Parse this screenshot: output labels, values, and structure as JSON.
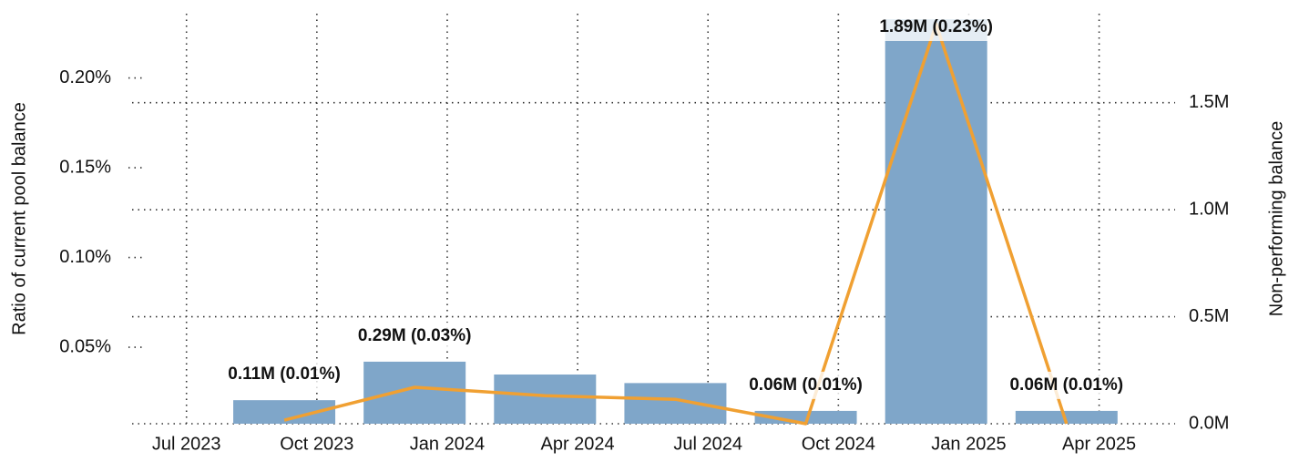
{
  "chart_data": {
    "type": "bar-line",
    "ylabel": "Ratio of current pool balance",
    "y2label": "Non-performing balance",
    "x": [
      "2023-09",
      "2023-12",
      "2024-03",
      "2024-06",
      "2024-09",
      "2024-12",
      "2025-03"
    ],
    "series": [
      {
        "name": "Non-performing balance",
        "type": "bar",
        "axis": "y2",
        "color": "#7fa6c9",
        "values": [
          0.11,
          0.29,
          0.23,
          0.19,
          0.06,
          1.89,
          0.06
        ],
        "value_labels": [
          "0.11M (0.01%)",
          "0.29M (0.03%)",
          null,
          null,
          "0.06M (0.01%)",
          "1.89M (0.23%)",
          "0.06M (0.01%)"
        ]
      },
      {
        "name": "Ratio of current pool balance",
        "type": "line",
        "axis": "y",
        "color": "#f0a032",
        "values": [
          0.0094,
          0.0277,
          0.023,
          0.021,
          0.0074,
          0.23,
          0.0074
        ]
      }
    ],
    "xlim": [
      "2023-06",
      "2025-06"
    ],
    "xticks": [
      {
        "value": "2023-07",
        "label": "Jul 2023"
      },
      {
        "value": "2023-10",
        "label": "Oct 2023"
      },
      {
        "value": "2024-01",
        "label": "Jan 2024"
      },
      {
        "value": "2024-04",
        "label": "Apr 2024"
      },
      {
        "value": "2024-07",
        "label": "Jul 2024"
      },
      {
        "value": "2024-10",
        "label": "Oct 2024"
      },
      {
        "value": "2025-01",
        "label": "Jan 2025"
      },
      {
        "value": "2025-04",
        "label": "Apr 2025"
      }
    ],
    "ylim": [
      0.0074,
      0.2434
    ],
    "yticks": [
      {
        "value": 0.05,
        "label": "0.05%"
      },
      {
        "value": 0.1,
        "label": "0.10%"
      },
      {
        "value": 0.15,
        "label": "0.15%"
      },
      {
        "value": 0.2,
        "label": "0.20%"
      }
    ],
    "y2lim": [
      0,
      1.98
    ],
    "y2ticks": [
      {
        "value": 0,
        "label": "0.0M"
      },
      {
        "value": 0.5,
        "label": "0.5M"
      },
      {
        "value": 1,
        "label": "1.0M"
      },
      {
        "value": 1.5,
        "label": "1.5M"
      }
    ],
    "grid": true
  }
}
